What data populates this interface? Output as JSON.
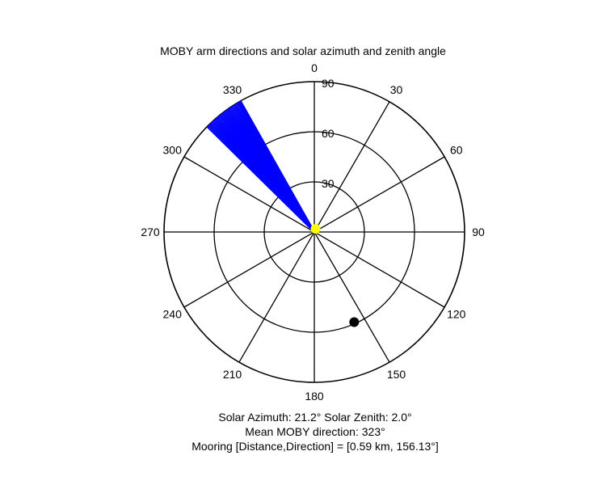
{
  "chart_data": {
    "type": "polar",
    "title": "MOBY arm directions and solar azimuth and zenith angle",
    "angle_ticks": [
      "0",
      "30",
      "60",
      "90",
      "120",
      "150",
      "180",
      "210",
      "240",
      "270",
      "300",
      "330"
    ],
    "angle_tick_values": [
      0,
      30,
      60,
      90,
      120,
      150,
      180,
      210,
      240,
      270,
      300,
      330
    ],
    "radial_ticks": [
      "30",
      "60",
      "90"
    ],
    "radial_tick_values": [
      30,
      60,
      90
    ],
    "rlim": [
      0,
      90
    ],
    "grid": true,
    "series": [
      {
        "marker": "line",
        "color": "#0000ff",
        "angles_deg": [
          314.5,
          315.2,
          315.9,
          316.6,
          317.3,
          318.0,
          318.7,
          319.4,
          320.1,
          320.8,
          321.5,
          322.2,
          322.9,
          323.6,
          324.3,
          325.0,
          325.7,
          326.4,
          327.1,
          327.8,
          328.5,
          329.2,
          329.7,
          330.2,
          330.6
        ],
        "r": 90
      },
      {
        "marker": "dot",
        "color": "#ffff00",
        "angle_deg": 21.2,
        "r": 2.0
      },
      {
        "marker": "dot",
        "color": "#000000",
        "angle_deg": 156.13,
        "r": 59
      }
    ]
  },
  "captions": {
    "solar": "Solar Azimuth: 21.2°   Solar Zenith: 2.0°",
    "mean_direction": "Mean MOBY direction: 323°",
    "mooring": "Mooring [Distance,Direction] = [0.59 km, 156.13°]"
  }
}
